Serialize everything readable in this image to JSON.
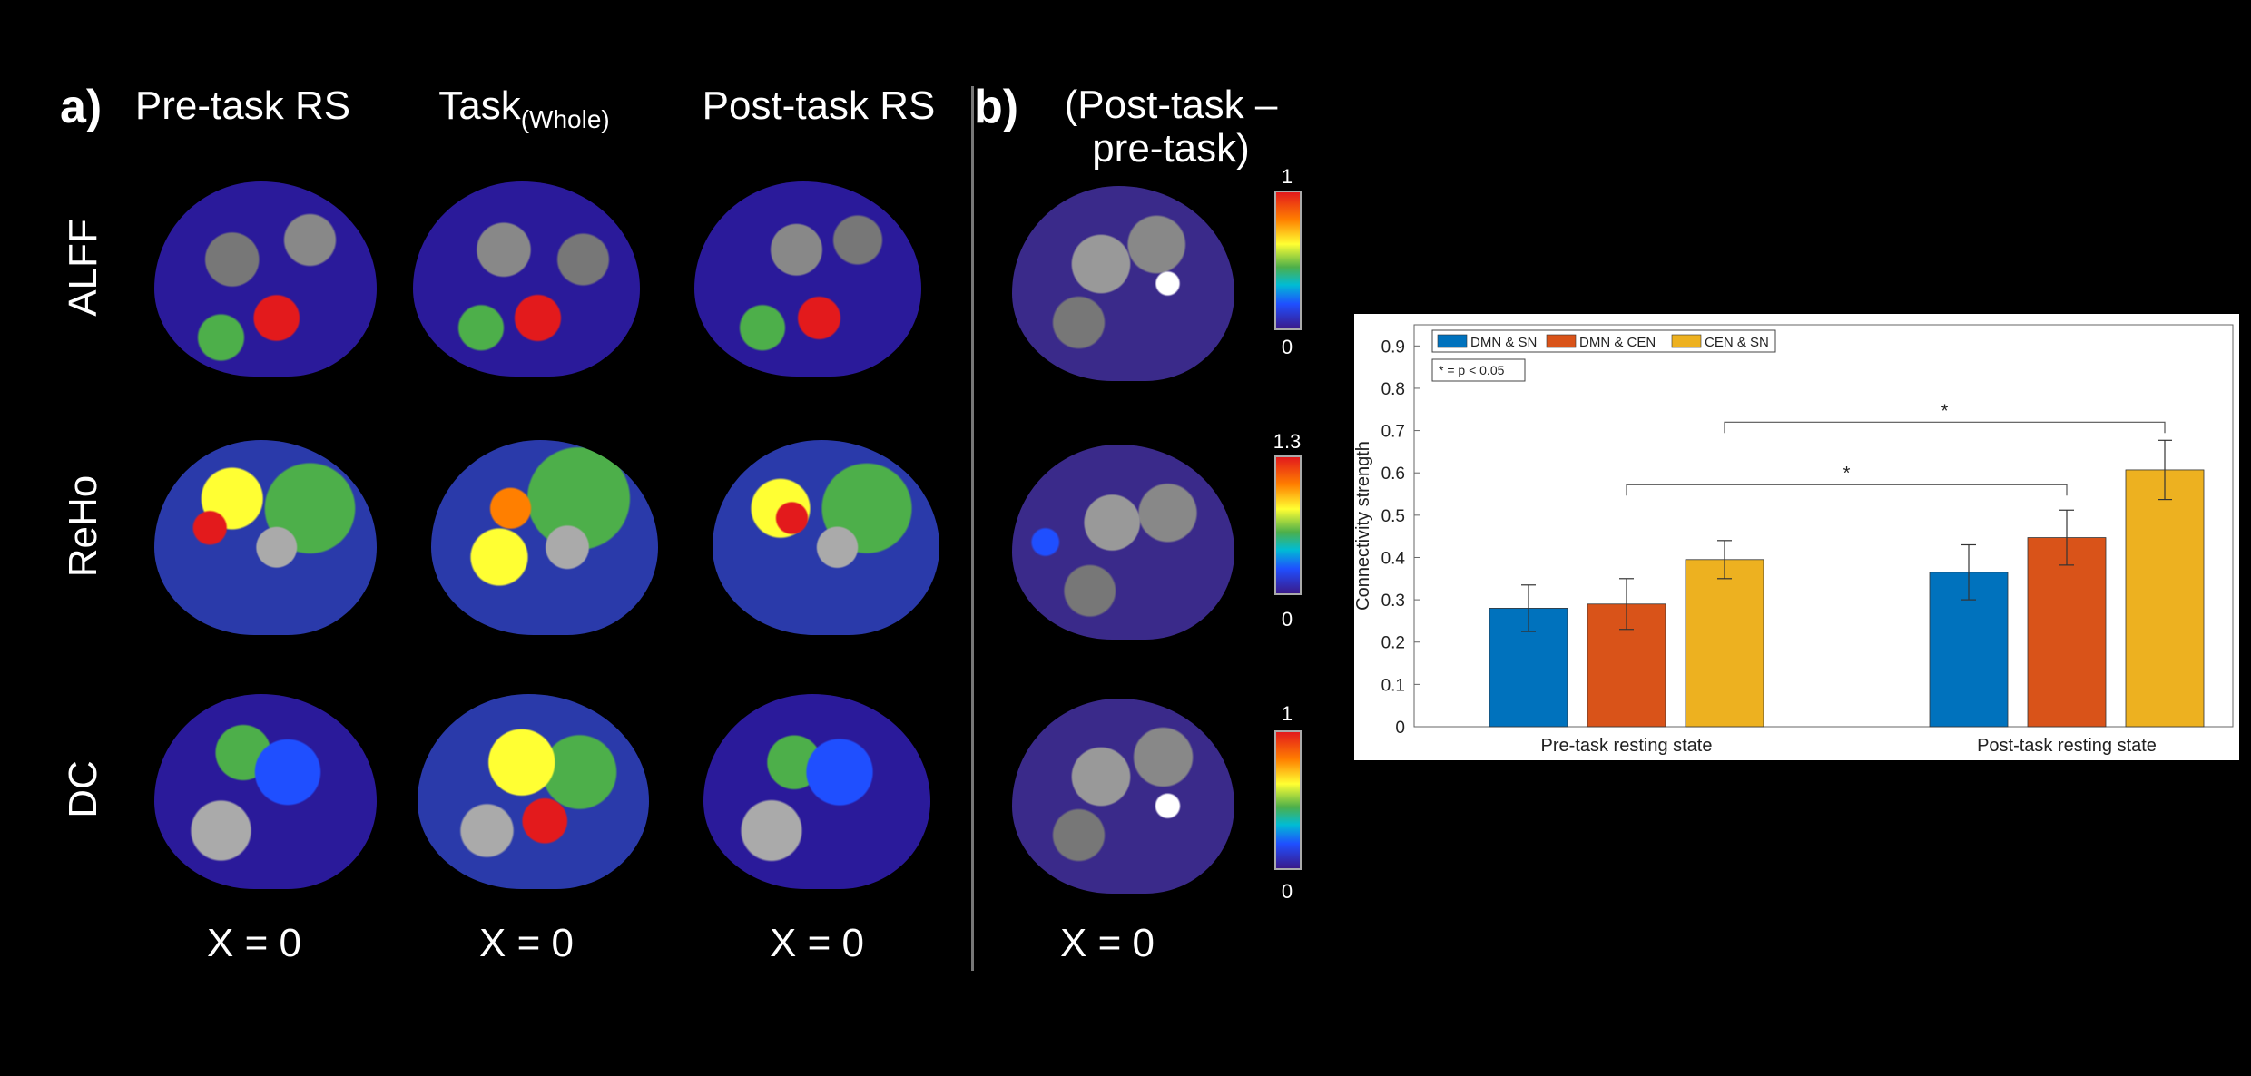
{
  "panel_a": {
    "letter": "a)",
    "columns": [
      {
        "title": "Pre-task RS",
        "title_sub": ""
      },
      {
        "title": "Task",
        "title_sub": "(Whole)"
      },
      {
        "title": "Post-task RS",
        "title_sub": ""
      }
    ],
    "rows": [
      "ALFF",
      "ReHo",
      "DC"
    ],
    "x_label": "X = 0"
  },
  "panel_b": {
    "letter": "b)",
    "title": "(Post-task – pre-task)",
    "x_label": "X = 0",
    "colorbars": [
      {
        "top": "1",
        "bottom": "0"
      },
      {
        "top": "1.3",
        "bottom": "0"
      },
      {
        "top": "1",
        "bottom": "0"
      }
    ]
  },
  "chart_data": {
    "type": "bar",
    "categories": [
      "Pre-task resting state",
      "Post-task resting state"
    ],
    "series": [
      {
        "name": "DMN & SN",
        "color": "#0072bd",
        "values": [
          0.28,
          0.365
        ],
        "errors": [
          0.055,
          0.065
        ]
      },
      {
        "name": "DMN & CEN",
        "color": "#d95319",
        "values": [
          0.29,
          0.447
        ],
        "errors": [
          0.06,
          0.065
        ]
      },
      {
        "name": "CEN & SN",
        "color": "#edb120",
        "values": [
          0.395,
          0.607
        ],
        "errors": [
          0.045,
          0.07
        ]
      }
    ],
    "ylabel": "Connectivity strength",
    "ylim": [
      0,
      0.95
    ],
    "yticks": [
      "0",
      "0.1",
      "0.2",
      "0.3",
      "0.4",
      "0.5",
      "0.6",
      "0.7",
      "0.8",
      "0.9"
    ],
    "legend_position": "top-left",
    "note": "* = p < 0.05",
    "significance": [
      {
        "from": "Pre-task resting state/DMN & CEN",
        "to": "Post-task resting state/DMN & CEN",
        "label": "*"
      },
      {
        "from": "Pre-task resting state/CEN & SN",
        "to": "Post-task resting state/CEN & SN",
        "label": "*"
      }
    ]
  }
}
